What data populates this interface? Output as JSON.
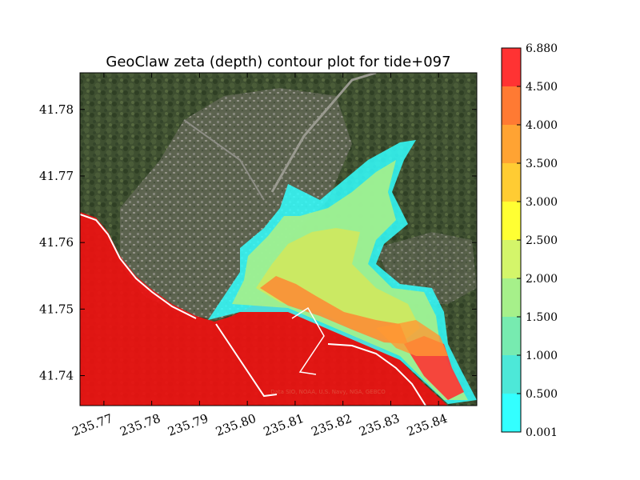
{
  "chart_data": {
    "type": "heatmap",
    "title": "GeoClaw zeta (depth) contour plot for tide+097",
    "xlabel": "",
    "ylabel": "",
    "xlim": [
      235.765,
      235.848
    ],
    "ylim": [
      41.7355,
      41.7855
    ],
    "x_ticks": [
      "235.77",
      "235.78",
      "235.79",
      "235.80",
      "235.81",
      "235.82",
      "235.83",
      "235.84"
    ],
    "x_tick_values": [
      235.77,
      235.78,
      235.79,
      235.8,
      235.81,
      235.82,
      235.83,
      235.84
    ],
    "y_ticks": [
      "41.74",
      "41.75",
      "41.76",
      "41.77",
      "41.78"
    ],
    "y_tick_values": [
      41.74,
      41.75,
      41.76,
      41.77,
      41.78
    ],
    "background": "satellite imagery",
    "credit": "Data SIO, NOAA, U.S. Navy, NGA, GEBCO",
    "colorbar": {
      "levels": [
        "0.001",
        "0.500",
        "1.000",
        "1.500",
        "2.000",
        "2.500",
        "3.000",
        "3.500",
        "4.000",
        "4.500",
        "6.880"
      ],
      "colors": [
        "#33ffff",
        "#4de8d8",
        "#77ebb0",
        "#a6f08a",
        "#d4f56a",
        "#ffff33",
        "#ffcc33",
        "#ffa333",
        "#ff7a33",
        "#ff3333"
      ]
    },
    "grid": false,
    "legend": "colorbar-right"
  }
}
